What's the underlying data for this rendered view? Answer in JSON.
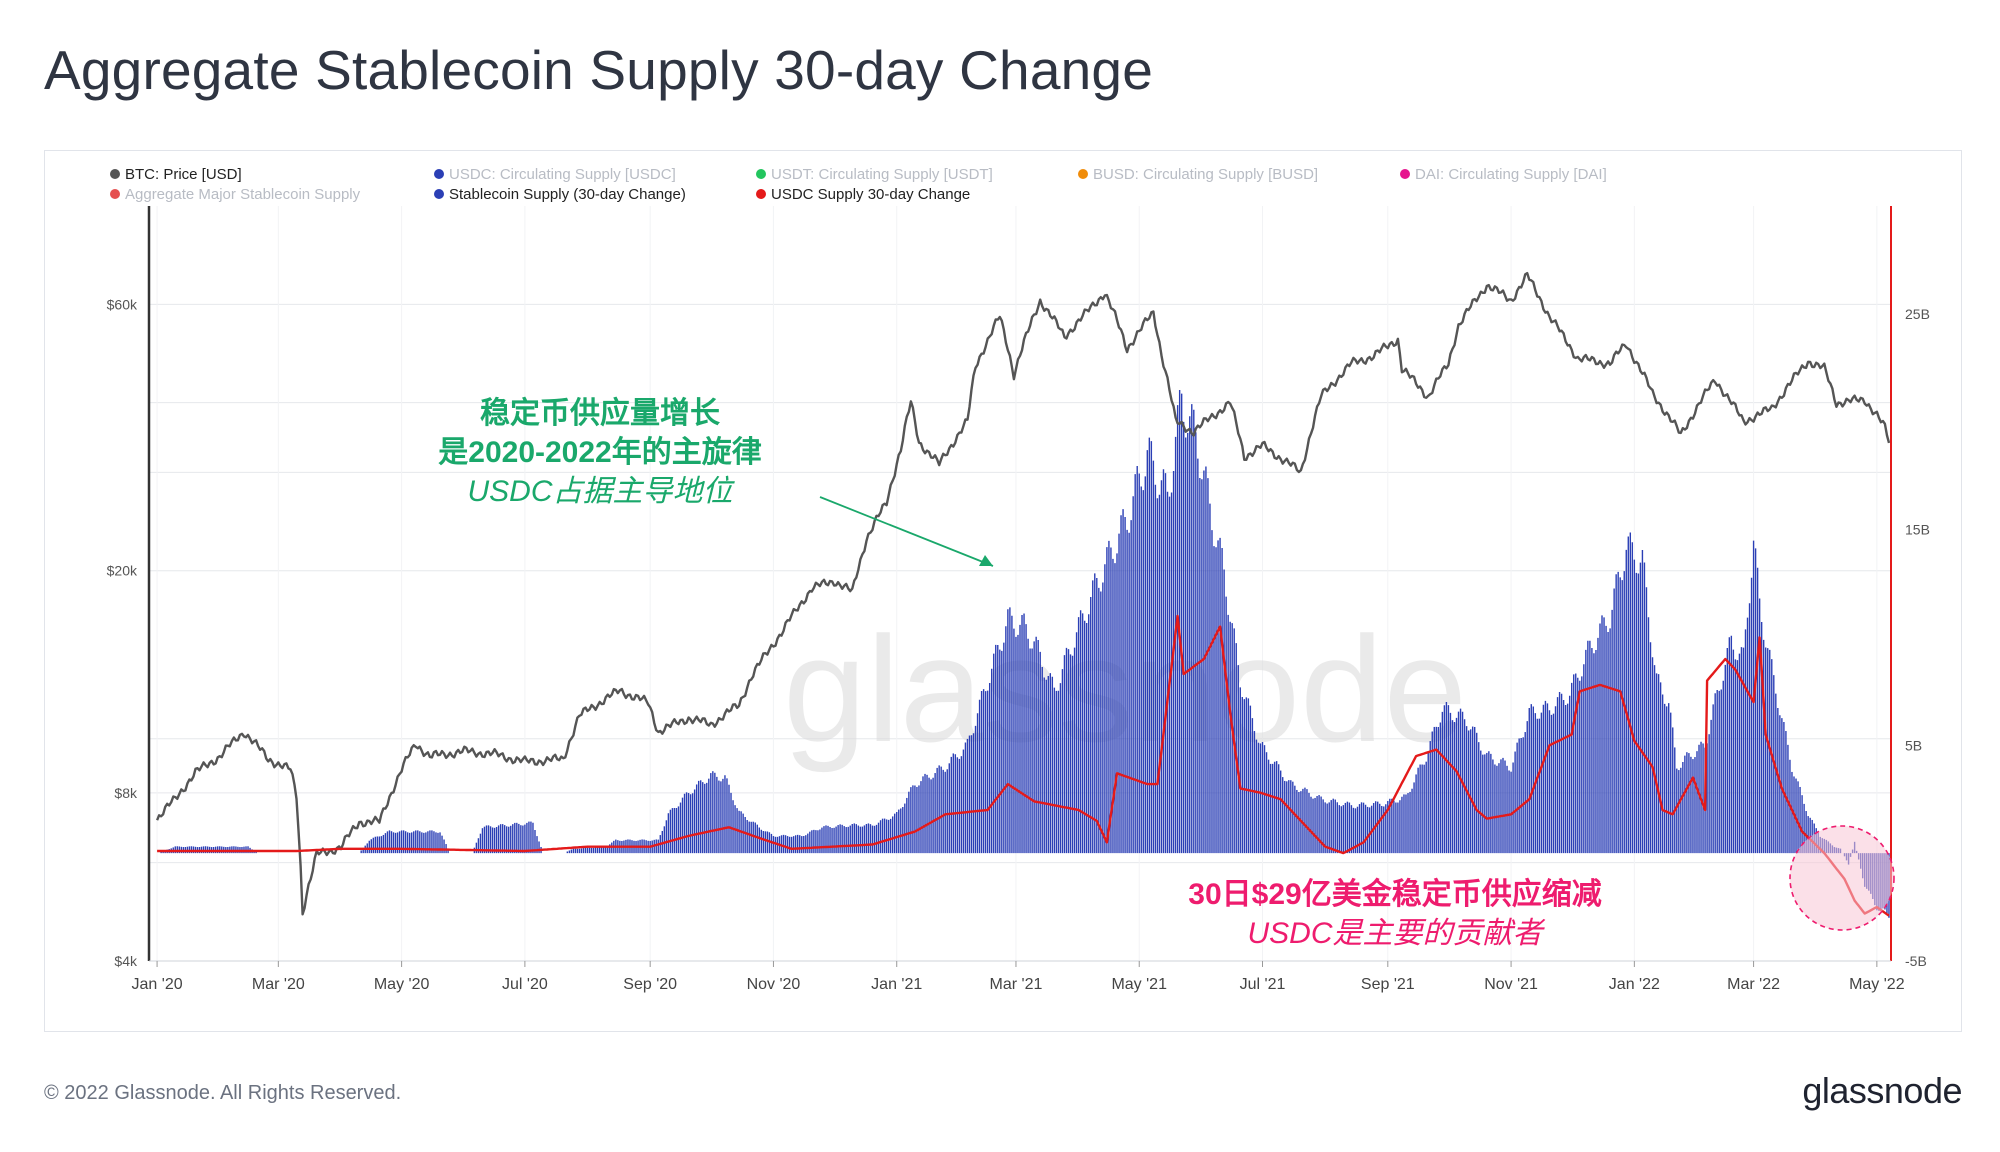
{
  "title": "Aggregate Stablecoin Supply 30-day Change",
  "footer": {
    "copyright": "© 2022 Glassnode. All Rights Reserved.",
    "logo_text": "glassnode"
  },
  "watermark": "glassnode",
  "annotations": {
    "growth": {
      "line1": "稳定币供应量增长",
      "line2": "是2020-2022年的主旋律",
      "line3": "USDC占据主导地位",
      "color": "#1aa86b"
    },
    "decline": {
      "line1": "30日$29亿美金稳定币供应缩减",
      "line2": "USDC是主要的贡献者",
      "color": "#ee1c6e"
    }
  },
  "chart_data": {
    "type": "bar",
    "x_tick_labels": [
      "Jan '20",
      "Mar '20",
      "May '20",
      "Jul '20",
      "Sep '20",
      "Nov '20",
      "Jan '21",
      "Mar '21",
      "May '21",
      "Jul '21",
      "Sep '21",
      "Nov '21",
      "Jan '22",
      "Mar '22",
      "May '22"
    ],
    "x_range": [
      "2019-12-28",
      "2022-05-08"
    ],
    "y_left": {
      "scale": "log",
      "ticks": [
        "$4k",
        "$8k",
        "$20k",
        "$60k"
      ],
      "tick_values": [
        4000,
        8000,
        20000,
        60000
      ],
      "range": [
        4000,
        90000
      ]
    },
    "y_right": {
      "ticks": [
        "-5B",
        "5B",
        "15B",
        "25B"
      ],
      "tick_values": [
        -5,
        5,
        15,
        25
      ],
      "unit": "B",
      "range": [
        -5,
        30
      ]
    },
    "grid": true,
    "legend": {
      "placement": "top-left",
      "entries": [
        {
          "name": "BTC: Price [USD]",
          "color": "#555555",
          "active": true
        },
        {
          "name": "USDC: Circulating Supply [USDC]",
          "color": "#2b3fb5",
          "active": false
        },
        {
          "name": "USDT: Circulating Supply [USDT]",
          "color": "#23c55e",
          "active": false
        },
        {
          "name": "BUSD: Circulating Supply [BUSD]",
          "color": "#f08c0a",
          "active": false
        },
        {
          "name": "DAI: Circulating Supply [DAI]",
          "color": "#e6158e",
          "active": false
        },
        {
          "name": "Aggregate Major Stablecoin Supply",
          "color": "#e55050",
          "active": false
        },
        {
          "name": "Stablecoin Supply (30-day Change)",
          "color": "#2b3fb5",
          "active": true
        },
        {
          "name": "USDC Supply 30-day Change",
          "color": "#e41a1a",
          "active": true
        }
      ]
    },
    "colors": {
      "btc": "#555555",
      "stablecoin_bars": "#2b3fb5",
      "usdc_line": "#e41a1a",
      "right_axis": "#e41a1a",
      "grid": "#e6e8ec"
    },
    "series": [
      {
        "name": "BTC: Price [USD]",
        "axis": "left",
        "points": [
          [
            "2020-01-01",
            7200
          ],
          [
            "2020-01-10",
            7800
          ],
          [
            "2020-01-20",
            8700
          ],
          [
            "2020-02-01",
            9300
          ],
          [
            "2020-02-13",
            10300
          ],
          [
            "2020-02-25",
            9200
          ],
          [
            "2020-03-07",
            8800
          ],
          [
            "2020-03-10",
            7900
          ],
          [
            "2020-03-13",
            4900
          ],
          [
            "2020-03-20",
            6200
          ],
          [
            "2020-04-01",
            6400
          ],
          [
            "2020-04-10",
            7100
          ],
          [
            "2020-04-20",
            7100
          ],
          [
            "2020-05-01",
            8800
          ],
          [
            "2020-05-08",
            9800
          ],
          [
            "2020-05-15",
            9300
          ],
          [
            "2020-06-01",
            9500
          ],
          [
            "2020-06-15",
            9400
          ],
          [
            "2020-07-01",
            9100
          ],
          [
            "2020-07-20",
            9200
          ],
          [
            "2020-07-28",
            11000
          ],
          [
            "2020-08-10",
            11800
          ],
          [
            "2020-08-17",
            12200
          ],
          [
            "2020-08-31",
            11600
          ],
          [
            "2020-09-05",
            10300
          ],
          [
            "2020-09-20",
            10900
          ],
          [
            "2020-10-01",
            10600
          ],
          [
            "2020-10-15",
            11500
          ],
          [
            "2020-10-21",
            12900
          ],
          [
            "2020-11-05",
            15500
          ],
          [
            "2020-11-20",
            18600
          ],
          [
            "2020-12-01",
            19200
          ],
          [
            "2020-12-10",
            18300
          ],
          [
            "2020-12-17",
            22800
          ],
          [
            "2020-12-27",
            26500
          ],
          [
            "2021-01-03",
            33000
          ],
          [
            "2021-01-08",
            40000
          ],
          [
            "2021-01-12",
            34000
          ],
          [
            "2021-01-22",
            31000
          ],
          [
            "2021-02-05",
            37000
          ],
          [
            "2021-02-09",
            46500
          ],
          [
            "2021-02-21",
            57000
          ],
          [
            "2021-02-28",
            45000
          ],
          [
            "2021-03-13",
            61000
          ],
          [
            "2021-03-25",
            52500
          ],
          [
            "2021-04-05",
            58000
          ],
          [
            "2021-04-14",
            63000
          ],
          [
            "2021-04-25",
            50000
          ],
          [
            "2021-05-08",
            58000
          ],
          [
            "2021-05-12",
            49000
          ],
          [
            "2021-05-19",
            37000
          ],
          [
            "2021-05-28",
            35500
          ],
          [
            "2021-06-15",
            40000
          ],
          [
            "2021-06-22",
            32000
          ],
          [
            "2021-07-01",
            33500
          ],
          [
            "2021-07-20",
            30000
          ],
          [
            "2021-07-30",
            41000
          ],
          [
            "2021-08-14",
            47000
          ],
          [
            "2021-08-25",
            48500
          ],
          [
            "2021-09-06",
            52000
          ],
          [
            "2021-09-08",
            46000
          ],
          [
            "2021-09-21",
            41000
          ],
          [
            "2021-10-01",
            47000
          ],
          [
            "2021-10-06",
            55000
          ],
          [
            "2021-10-20",
            65000
          ],
          [
            "2021-11-01",
            61000
          ],
          [
            "2021-11-09",
            67500
          ],
          [
            "2021-11-20",
            57000
          ],
          [
            "2021-12-04",
            48000
          ],
          [
            "2021-12-20",
            47000
          ],
          [
            "2021-12-28",
            51000
          ],
          [
            "2022-01-10",
            41500
          ],
          [
            "2022-01-24",
            35000
          ],
          [
            "2022-02-10",
            44000
          ],
          [
            "2022-02-24",
            37000
          ],
          [
            "2022-03-10",
            39000
          ],
          [
            "2022-03-28",
            47500
          ],
          [
            "2022-04-05",
            46000
          ],
          [
            "2022-04-11",
            40000
          ],
          [
            "2022-04-25",
            40500
          ],
          [
            "2022-05-01",
            38000
          ],
          [
            "2022-05-05",
            36000
          ],
          [
            "2022-05-07",
            34000
          ]
        ]
      },
      {
        "name": "Stablecoin Supply (30-day Change)",
        "axis": "right",
        "unit": "B",
        "style": "bars",
        "points": [
          [
            "2020-01-01",
            0
          ],
          [
            "2020-01-10",
            0.3
          ],
          [
            "2020-02-15",
            0.3
          ],
          [
            "2020-02-20",
            0
          ],
          [
            "2020-04-10",
            0
          ],
          [
            "2020-04-15",
            0.6
          ],
          [
            "2020-04-25",
            1.0
          ],
          [
            "2020-05-20",
            1.0
          ],
          [
            "2020-05-25",
            0
          ],
          [
            "2020-06-05",
            0
          ],
          [
            "2020-06-10",
            1.2
          ],
          [
            "2020-07-05",
            1.4
          ],
          [
            "2020-07-10",
            0
          ],
          [
            "2020-07-20",
            0
          ],
          [
            "2020-07-25",
            0.2
          ],
          [
            "2020-08-10",
            0.3
          ],
          [
            "2020-08-15",
            0.6
          ],
          [
            "2020-09-05",
            0.6
          ],
          [
            "2020-09-10",
            1.8
          ],
          [
            "2020-09-20",
            2.8
          ],
          [
            "2020-10-01",
            3.6
          ],
          [
            "2020-10-08",
            3.5
          ],
          [
            "2020-10-15",
            1.9
          ],
          [
            "2020-10-25",
            1.2
          ],
          [
            "2020-11-01",
            0.8
          ],
          [
            "2020-11-15",
            0.8
          ],
          [
            "2020-11-25",
            1.2
          ],
          [
            "2020-12-10",
            1.3
          ],
          [
            "2020-12-20",
            1.3
          ],
          [
            "2021-01-01",
            1.8
          ],
          [
            "2021-01-10",
            3.2
          ],
          [
            "2021-01-25",
            4.0
          ],
          [
            "2021-02-05",
            5.0
          ],
          [
            "2021-02-15",
            8.0
          ],
          [
            "2021-02-25",
            10.8
          ],
          [
            "2021-03-05",
            10.5
          ],
          [
            "2021-03-10",
            9.8
          ],
          [
            "2021-03-20",
            7.5
          ],
          [
            "2021-03-28",
            9.5
          ],
          [
            "2021-04-10",
            12.5
          ],
          [
            "2021-04-25",
            15.5
          ],
          [
            "2021-05-05",
            18.5
          ],
          [
            "2021-05-15",
            16.5
          ],
          [
            "2021-05-22",
            21.0
          ],
          [
            "2021-05-30",
            19.0
          ],
          [
            "2021-06-05",
            16.0
          ],
          [
            "2021-06-12",
            13.0
          ],
          [
            "2021-06-20",
            8.0
          ],
          [
            "2021-06-30",
            5.0
          ],
          [
            "2021-07-15",
            3.2
          ],
          [
            "2021-07-30",
            2.5
          ],
          [
            "2021-08-15",
            2.2
          ],
          [
            "2021-08-30",
            2.3
          ],
          [
            "2021-09-10",
            2.6
          ],
          [
            "2021-09-20",
            4.5
          ],
          [
            "2021-09-28",
            6.7
          ],
          [
            "2021-10-10",
            6.2
          ],
          [
            "2021-10-20",
            4.5
          ],
          [
            "2021-11-01",
            4.0
          ],
          [
            "2021-11-10",
            6.5
          ],
          [
            "2021-11-20",
            6.7
          ],
          [
            "2021-11-30",
            7.4
          ],
          [
            "2021-12-10",
            9.5
          ],
          [
            "2021-12-20",
            11.0
          ],
          [
            "2021-12-28",
            14.2
          ],
          [
            "2022-01-05",
            13.5
          ],
          [
            "2022-01-12",
            8.0
          ],
          [
            "2022-01-18",
            7.0
          ],
          [
            "2022-01-22",
            4.0
          ],
          [
            "2022-01-28",
            4.5
          ],
          [
            "2022-02-05",
            5.0
          ],
          [
            "2022-02-10",
            7.0
          ],
          [
            "2022-02-18",
            9.8
          ],
          [
            "2022-02-24",
            9.0
          ],
          [
            "2022-03-01",
            14.5
          ],
          [
            "2022-03-04",
            11.5
          ],
          [
            "2022-03-10",
            8.5
          ],
          [
            "2022-03-20",
            4.0
          ],
          [
            "2022-03-28",
            1.8
          ],
          [
            "2022-04-03",
            0.8
          ],
          [
            "2022-04-10",
            0.3
          ],
          [
            "2022-04-13",
            0.2
          ],
          [
            "2022-04-17",
            -0.5
          ],
          [
            "2022-04-20",
            0.5
          ],
          [
            "2022-04-25",
            -1.5
          ],
          [
            "2022-05-01",
            -2.5
          ],
          [
            "2022-05-07",
            -2.9
          ]
        ]
      },
      {
        "name": "USDC Supply 30-day Change",
        "axis": "right",
        "unit": "B",
        "style": "line",
        "points": [
          [
            "2020-01-01",
            0.1
          ],
          [
            "2020-03-10",
            0.1
          ],
          [
            "2020-04-01",
            0.2
          ],
          [
            "2020-05-01",
            0.2
          ],
          [
            "2020-07-01",
            0.1
          ],
          [
            "2020-08-01",
            0.3
          ],
          [
            "2020-09-01",
            0.3
          ],
          [
            "2020-09-20",
            0.8
          ],
          [
            "2020-10-10",
            1.2
          ],
          [
            "2020-10-25",
            0.7
          ],
          [
            "2020-11-10",
            0.2
          ],
          [
            "2020-12-20",
            0.4
          ],
          [
            "2021-01-10",
            1.0
          ],
          [
            "2021-01-25",
            1.8
          ],
          [
            "2021-02-15",
            2.0
          ],
          [
            "2021-02-25",
            3.2
          ],
          [
            "2021-03-10",
            2.4
          ],
          [
            "2021-04-01",
            2.0
          ],
          [
            "2021-04-10",
            1.5
          ],
          [
            "2021-04-15",
            0.5
          ],
          [
            "2021-04-20",
            3.7
          ],
          [
            "2021-05-05",
            3.2
          ],
          [
            "2021-05-10",
            3.2
          ],
          [
            "2021-05-20",
            11.0
          ],
          [
            "2021-05-23",
            8.3
          ],
          [
            "2021-06-02",
            9.0
          ],
          [
            "2021-06-10",
            10.5
          ],
          [
            "2021-06-15",
            6.5
          ],
          [
            "2021-06-20",
            3.0
          ],
          [
            "2021-06-30",
            2.8
          ],
          [
            "2021-07-10",
            2.5
          ],
          [
            "2021-07-20",
            1.5
          ],
          [
            "2021-08-01",
            0.3
          ],
          [
            "2021-08-10",
            0.0
          ],
          [
            "2021-08-20",
            0.5
          ],
          [
            "2021-09-01",
            2.0
          ],
          [
            "2021-09-15",
            4.5
          ],
          [
            "2021-09-25",
            4.8
          ],
          [
            "2021-10-05",
            3.8
          ],
          [
            "2021-10-15",
            2.0
          ],
          [
            "2021-10-20",
            1.6
          ],
          [
            "2021-11-01",
            1.8
          ],
          [
            "2021-11-10",
            2.5
          ],
          [
            "2021-11-20",
            5.0
          ],
          [
            "2021-12-01",
            5.5
          ],
          [
            "2021-12-05",
            7.5
          ],
          [
            "2021-12-15",
            7.8
          ],
          [
            "2021-12-25",
            7.5
          ],
          [
            "2022-01-01",
            5.2
          ],
          [
            "2022-01-10",
            4.0
          ],
          [
            "2022-01-15",
            2.0
          ],
          [
            "2022-01-20",
            1.8
          ],
          [
            "2022-01-30",
            3.5
          ],
          [
            "2022-02-05",
            2.0
          ],
          [
            "2022-02-06",
            8.0
          ],
          [
            "2022-02-15",
            9.0
          ],
          [
            "2022-02-20",
            8.5
          ],
          [
            "2022-03-01",
            7.0
          ],
          [
            "2022-03-04",
            10.0
          ],
          [
            "2022-03-07",
            5.5
          ],
          [
            "2022-03-15",
            3.0
          ],
          [
            "2022-03-25",
            1.0
          ],
          [
            "2022-04-05",
            0.0
          ],
          [
            "2022-04-15",
            -1.2
          ],
          [
            "2022-04-20",
            -2.2
          ],
          [
            "2022-04-25",
            -2.8
          ],
          [
            "2022-05-01",
            -2.5
          ],
          [
            "2022-05-07",
            -2.9
          ]
        ]
      }
    ]
  }
}
